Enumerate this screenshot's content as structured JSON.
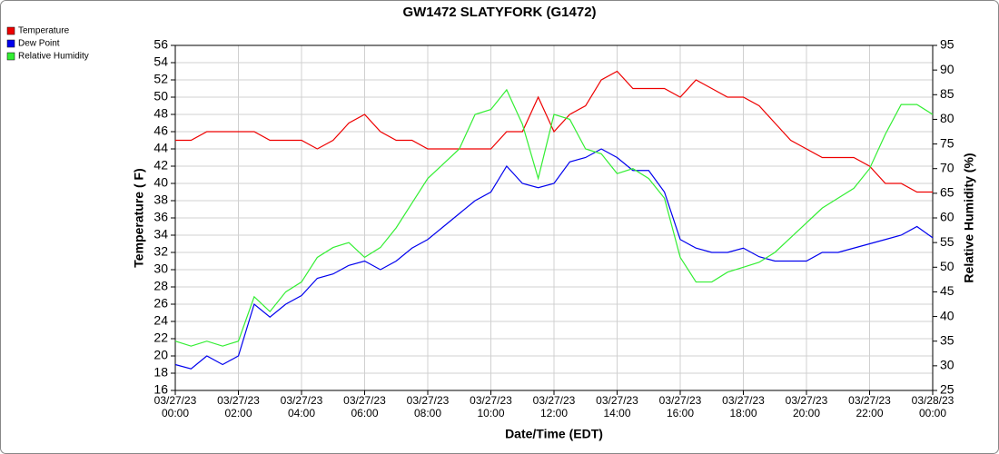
{
  "chart_data": {
    "type": "line",
    "title": "GW1472 SLATYFORK (G1472)",
    "xlabel": "Date/Time (EDT)",
    "ylabel": "Temperature ( F)",
    "y2label": "Relative Humidity (%)",
    "x": [
      "03/27/23 00:00",
      "03/27/23 00:30",
      "03/27/23 01:00",
      "03/27/23 01:30",
      "03/27/23 02:00",
      "03/27/23 02:30",
      "03/27/23 03:00",
      "03/27/23 03:30",
      "03/27/23 04:00",
      "03/27/23 04:30",
      "03/27/23 05:00",
      "03/27/23 05:30",
      "03/27/23 06:00",
      "03/27/23 06:30",
      "03/27/23 07:00",
      "03/27/23 07:30",
      "03/27/23 08:00",
      "03/27/23 08:30",
      "03/27/23 09:00",
      "03/27/23 09:30",
      "03/27/23 10:00",
      "03/27/23 10:30",
      "03/27/23 11:00",
      "03/27/23 11:30",
      "03/27/23 12:00",
      "03/27/23 12:30",
      "03/27/23 13:00",
      "03/27/23 13:30",
      "03/27/23 14:00",
      "03/27/23 14:30",
      "03/27/23 15:00",
      "03/27/23 15:30",
      "03/27/23 16:00",
      "03/27/23 16:30",
      "03/27/23 17:00",
      "03/27/23 17:30",
      "03/27/23 18:00",
      "03/27/23 18:30",
      "03/27/23 19:00",
      "03/27/23 19:30",
      "03/27/23 20:00",
      "03/27/23 20:30",
      "03/27/23 21:00",
      "03/27/23 21:30",
      "03/27/23 22:00",
      "03/27/23 22:30",
      "03/27/23 23:00",
      "03/27/23 23:30",
      "03/28/23 00:00"
    ],
    "series": [
      {
        "name": "Temperature",
        "color": "#ee0000",
        "values": [
          45,
          45,
          46,
          46,
          46,
          46,
          45,
          45,
          45,
          44,
          45,
          47,
          48,
          46,
          45,
          45,
          44,
          44,
          44,
          44,
          44,
          46,
          46,
          50,
          46,
          48,
          49,
          52,
          53,
          51,
          51,
          51,
          50,
          52,
          51,
          50,
          50,
          49,
          47,
          45,
          44,
          43,
          43,
          43,
          42,
          40,
          40,
          39,
          39
        ]
      },
      {
        "name": "Dew Point",
        "color": "#0000ee",
        "values": [
          19,
          18.5,
          20,
          19,
          20,
          26,
          24.5,
          26,
          27,
          29,
          29.5,
          30.5,
          31,
          30,
          31,
          32.5,
          33.5,
          35,
          36.5,
          38,
          39,
          42,
          40,
          39.5,
          40,
          42.5,
          43,
          44,
          43,
          41.5,
          41.5,
          39,
          33.5,
          32.5,
          32,
          32,
          32.5,
          31.5,
          31,
          31,
          31,
          32,
          32,
          32.5,
          33,
          33.5,
          34,
          35,
          33.7
        ]
      },
      {
        "name": "Relative Humidity",
        "color": "#33ee33",
        "axis": "y2",
        "values": [
          35,
          34,
          35,
          34,
          35,
          44,
          41,
          45,
          47,
          52,
          54,
          55,
          52,
          54,
          58,
          63,
          68,
          71,
          74,
          81,
          82,
          86,
          79,
          68,
          81,
          80,
          74,
          73,
          69,
          70,
          68,
          64,
          52,
          47,
          47,
          49,
          50,
          51,
          53,
          56,
          59,
          62,
          64,
          66,
          70,
          77,
          83,
          83,
          81
        ]
      }
    ],
    "xlim": [
      "03/27/23 00:00",
      "03/28/23 00:00"
    ],
    "xticks": [
      {
        "value": "03/27/23 00:00",
        "label": "03/27/23\n00:00"
      },
      {
        "value": "03/27/23 02:00",
        "label": "03/27/23\n02:00"
      },
      {
        "value": "03/27/23 04:00",
        "label": "03/27/23\n04:00"
      },
      {
        "value": "03/27/23 06:00",
        "label": "03/27/23\n06:00"
      },
      {
        "value": "03/27/23 08:00",
        "label": "03/27/23\n08:00"
      },
      {
        "value": "03/27/23 10:00",
        "label": "03/27/23\n10:00"
      },
      {
        "value": "03/27/23 12:00",
        "label": "03/27/23\n12:00"
      },
      {
        "value": "03/27/23 14:00",
        "label": "03/27/23\n14:00"
      },
      {
        "value": "03/27/23 16:00",
        "label": "03/27/23\n16:00"
      },
      {
        "value": "03/27/23 18:00",
        "label": "03/27/23\n18:00"
      },
      {
        "value": "03/27/23 20:00",
        "label": "03/27/23\n20:00"
      },
      {
        "value": "03/27/23 22:00",
        "label": "03/27/23\n22:00"
      },
      {
        "value": "03/28/23 00:00",
        "label": "03/28/23\n00:00"
      }
    ],
    "ylim": [
      16,
      56
    ],
    "yticks": [
      16,
      18,
      20,
      22,
      24,
      26,
      28,
      30,
      32,
      34,
      36,
      38,
      40,
      42,
      44,
      46,
      48,
      50,
      52,
      54,
      56
    ],
    "y2lim": [
      25,
      95
    ],
    "y2ticks": [
      25,
      30,
      35,
      40,
      45,
      50,
      55,
      60,
      65,
      70,
      75,
      80,
      85,
      90,
      95
    ],
    "grid": true,
    "legend": "top-left"
  }
}
